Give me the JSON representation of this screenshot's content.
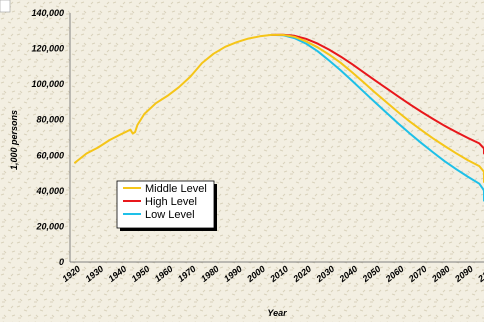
{
  "chart_data": {
    "type": "line",
    "title": "",
    "xlabel": "Year",
    "ylabel": "1,000 persons",
    "xlim": [
      1920,
      2105
    ],
    "ylim": [
      0,
      140000
    ],
    "x_ticks": [
      "1920",
      "1930",
      "1940",
      "1950",
      "1960",
      "1970",
      "1980",
      "1990",
      "2000",
      "2010",
      "2020",
      "2030",
      "2040",
      "2050",
      "2060",
      "2070",
      "2080",
      "2090",
      "2100"
    ],
    "y_ticks": [
      "0",
      "20,000",
      "40,000",
      "60,000",
      "80,000",
      "100,000",
      "120,000",
      "140,000"
    ],
    "y_tick_values": [
      0,
      20000,
      40000,
      60000,
      80000,
      100000,
      120000,
      140000
    ],
    "grid": false,
    "legend_position": "bottom-left",
    "series": [
      {
        "name": "Middle Level",
        "color": "#f5c518",
        "x": [
          1920,
          1925,
          1930,
          1935,
          1940,
          1944,
          1945,
          1946,
          1947,
          1950,
          1955,
          1960,
          1965,
          1970,
          1975,
          1980,
          1985,
          1990,
          1995,
          2000,
          2005,
          2010,
          2015,
          2020,
          2025,
          2030,
          2035,
          2040,
          2045,
          2050,
          2055,
          2060,
          2065,
          2070,
          2075,
          2080,
          2085,
          2090,
          2095,
          2100,
          2105
        ],
        "y": [
          55900,
          61000,
          64400,
          68600,
          71900,
          74400,
          72200,
          73100,
          77000,
          83200,
          89300,
          93400,
          98300,
          104300,
          111900,
          117100,
          121000,
          123600,
          125600,
          126900,
          127700,
          127700,
          126600,
          124100,
          120700,
          116600,
          112000,
          106600,
          100900,
          95200,
          89600,
          84100,
          78900,
          74100,
          69500,
          65200,
          61100,
          57300,
          53900,
          50700,
          45000
        ]
      },
      {
        "name": "High Level",
        "color": "#e8171b",
        "x": [
          2005,
          2010,
          2015,
          2020,
          2025,
          2030,
          2035,
          2040,
          2045,
          2050,
          2055,
          2060,
          2065,
          2070,
          2075,
          2080,
          2085,
          2090,
          2095,
          2100,
          2105
        ],
        "y": [
          127700,
          127800,
          127200,
          125500,
          122800,
          119400,
          115500,
          111200,
          106600,
          102000,
          97500,
          93000,
          88600,
          84400,
          80400,
          76600,
          73100,
          69800,
          66700,
          63800,
          61000
        ]
      },
      {
        "name": "Low Level",
        "color": "#1ec0e8",
        "x": [
          2005,
          2010,
          2015,
          2020,
          2025,
          2030,
          2035,
          2040,
          2045,
          2050,
          2055,
          2060,
          2065,
          2070,
          2075,
          2080,
          2085,
          2090,
          2095,
          2100,
          2105
        ],
        "y": [
          127700,
          127500,
          125900,
          122800,
          118500,
          113300,
          107700,
          101800,
          95700,
          89700,
          83700,
          77800,
          72200,
          66800,
          61600,
          56700,
          52200,
          48000,
          44000,
          40300,
          34500
        ]
      }
    ]
  }
}
